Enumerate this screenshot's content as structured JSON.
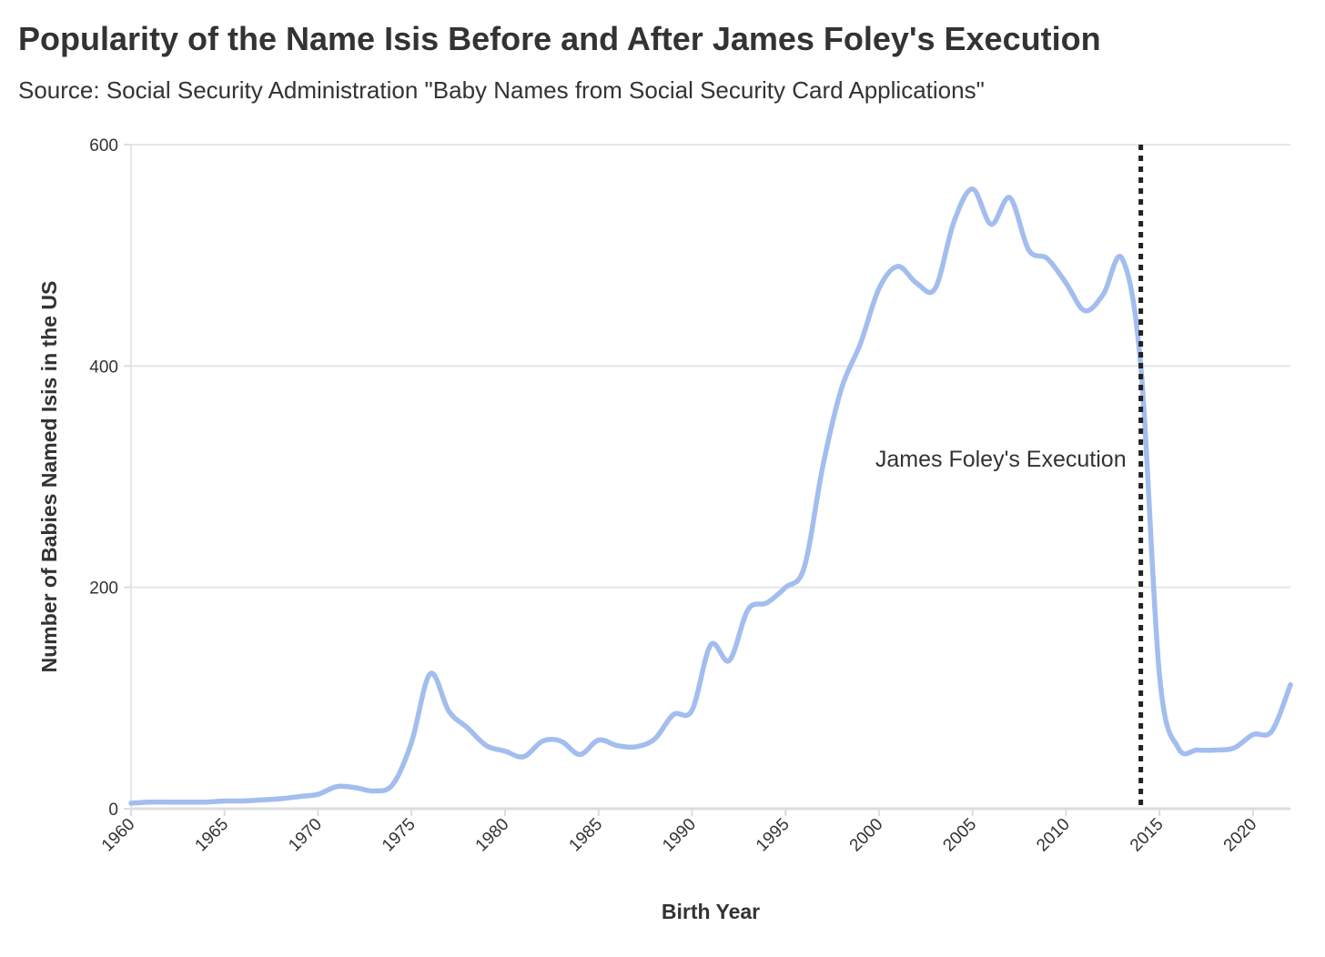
{
  "chart_data": {
    "type": "line",
    "title": "Popularity of the Name Isis Before and After James Foley's Execution",
    "subtitle": "Source: Social Security Administration \"Baby Names from Social Security Card Applications\"",
    "xlabel": "Birth Year",
    "ylabel": "Number of Babies Named Isis in the US",
    "xlim": [
      1960,
      2022
    ],
    "ylim": [
      0,
      600
    ],
    "x_ticks": [
      1960,
      1965,
      1970,
      1975,
      1980,
      1985,
      1990,
      1995,
      2000,
      2005,
      2010,
      2015,
      2020
    ],
    "y_ticks": [
      0,
      200,
      400,
      600
    ],
    "grid": "horizontal",
    "series": [
      {
        "color": "#a3bdee",
        "x": [
          1960,
          1961,
          1962,
          1963,
          1964,
          1965,
          1966,
          1967,
          1968,
          1969,
          1970,
          1971,
          1972,
          1973,
          1974,
          1975,
          1976,
          1977,
          1978,
          1979,
          1980,
          1981,
          1982,
          1983,
          1984,
          1985,
          1986,
          1987,
          1988,
          1989,
          1990,
          1991,
          1992,
          1993,
          1994,
          1995,
          1996,
          1997,
          1998,
          1999,
          2000,
          2001,
          2002,
          2003,
          2004,
          2005,
          2006,
          2007,
          2008,
          2009,
          2010,
          2011,
          2012,
          2013,
          2014,
          2015,
          2016,
          2017,
          2018,
          2019,
          2020,
          2021,
          2022
        ],
        "values": [
          5,
          6,
          6,
          6,
          6,
          7,
          7,
          8,
          9,
          11,
          13,
          20,
          19,
          16,
          22,
          60,
          122,
          88,
          73,
          57,
          52,
          47,
          61,
          61,
          49,
          62,
          57,
          56,
          63,
          85,
          89,
          148,
          134,
          180,
          186,
          200,
          218,
          310,
          380,
          420,
          470,
          490,
          475,
          470,
          530,
          560,
          528,
          552,
          505,
          497,
          475,
          450,
          465,
          497,
          400,
          120,
          55,
          53,
          53,
          55,
          67,
          70,
          112
        ]
      }
    ],
    "annotations": [
      {
        "type": "vline",
        "x": 2014,
        "style": "dotted",
        "color": "#222222",
        "label": "James Foley's Execution",
        "label_y": 305
      }
    ]
  }
}
